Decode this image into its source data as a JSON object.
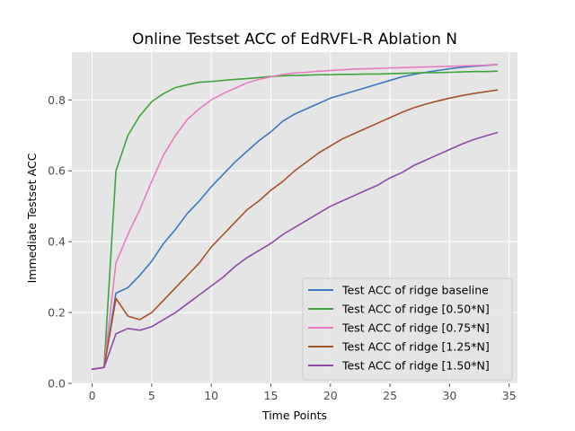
{
  "chart_data": {
    "type": "line",
    "title": "Online Testset ACC of EdRVFL-R Ablation N",
    "xlabel": "Time Points",
    "ylabel": "Immediate Testset ACC",
    "xlim": [
      -1.7,
      35.7
    ],
    "ylim": [
      0.0,
      0.935
    ],
    "xticks": [
      0,
      5,
      10,
      15,
      20,
      25,
      30,
      35
    ],
    "yticks": [
      0.0,
      0.2,
      0.4,
      0.6,
      0.8
    ],
    "ytick_labels": [
      "0.0",
      "0.2",
      "0.4",
      "0.6",
      "0.8"
    ],
    "grid": true,
    "style": "ggplot",
    "legend_position": "lower-right",
    "x": [
      0,
      1,
      2,
      3,
      4,
      5,
      6,
      7,
      8,
      9,
      10,
      11,
      12,
      13,
      14,
      15,
      16,
      17,
      18,
      19,
      20,
      21,
      22,
      23,
      24,
      25,
      26,
      27,
      28,
      29,
      30,
      31,
      32,
      33,
      34
    ],
    "series": [
      {
        "name": "Test ACC of ridge baseline",
        "color": "#3a78c0",
        "values": [
          0.04,
          0.045,
          0.255,
          0.27,
          0.305,
          0.345,
          0.395,
          0.435,
          0.48,
          0.515,
          0.555,
          0.59,
          0.625,
          0.655,
          0.685,
          0.71,
          0.74,
          0.76,
          0.775,
          0.79,
          0.805,
          0.815,
          0.825,
          0.835,
          0.845,
          0.855,
          0.865,
          0.872,
          0.878,
          0.883,
          0.888,
          0.892,
          0.895,
          0.897,
          0.9
        ]
      },
      {
        "name": "Test ACC of ridge [0.50*N]",
        "color": "#3fa43f",
        "values": [
          0.04,
          0.045,
          0.6,
          0.7,
          0.755,
          0.795,
          0.818,
          0.835,
          0.843,
          0.85,
          0.852,
          0.855,
          0.858,
          0.86,
          0.863,
          0.866,
          0.868,
          0.869,
          0.87,
          0.871,
          0.871,
          0.872,
          0.872,
          0.873,
          0.873,
          0.874,
          0.875,
          0.876,
          0.877,
          0.877,
          0.878,
          0.879,
          0.88,
          0.88,
          0.881
        ]
      },
      {
        "name": "Test ACC of ridge [0.75*N]",
        "color": "#e87cc0",
        "values": [
          0.04,
          0.045,
          0.34,
          0.42,
          0.49,
          0.57,
          0.645,
          0.7,
          0.745,
          0.775,
          0.8,
          0.818,
          0.833,
          0.848,
          0.858,
          0.865,
          0.872,
          0.876,
          0.878,
          0.881,
          0.883,
          0.885,
          0.887,
          0.888,
          0.889,
          0.89,
          0.891,
          0.892,
          0.893,
          0.894,
          0.895,
          0.896,
          0.897,
          0.898,
          0.9
        ]
      },
      {
        "name": "Test ACC of ridge [1.25*N]",
        "color": "#a5522a",
        "values": [
          0.04,
          0.045,
          0.24,
          0.19,
          0.18,
          0.2,
          0.235,
          0.27,
          0.305,
          0.34,
          0.385,
          0.42,
          0.455,
          0.49,
          0.515,
          0.545,
          0.57,
          0.6,
          0.625,
          0.65,
          0.67,
          0.69,
          0.705,
          0.72,
          0.735,
          0.75,
          0.765,
          0.778,
          0.788,
          0.797,
          0.805,
          0.812,
          0.818,
          0.823,
          0.828
        ]
      },
      {
        "name": "Test ACC of ridge [1.50*N]",
        "color": "#8d4aa8",
        "values": [
          0.04,
          0.045,
          0.14,
          0.155,
          0.15,
          0.16,
          0.18,
          0.2,
          0.225,
          0.25,
          0.275,
          0.3,
          0.33,
          0.355,
          0.375,
          0.395,
          0.42,
          0.44,
          0.46,
          0.48,
          0.5,
          0.515,
          0.53,
          0.545,
          0.56,
          0.58,
          0.595,
          0.615,
          0.63,
          0.645,
          0.66,
          0.675,
          0.688,
          0.698,
          0.708
        ]
      }
    ]
  }
}
